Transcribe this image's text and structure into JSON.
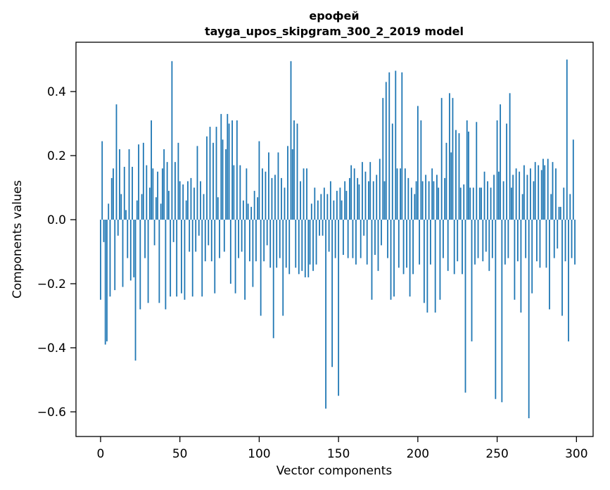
{
  "title": {
    "line1": "ерофей",
    "line2": "tayga_upos_skipgram_300_2_2019 model"
  },
  "chart_data": {
    "type": "bar",
    "title": "ерофей\ntayga_upos_skipgram_300_2_2019 model",
    "xlabel": "Vector components",
    "ylabel": "Components values",
    "xlim": [
      -15.5,
      310.5
    ],
    "ylim": [
      -0.677,
      0.554
    ],
    "xticks": [
      0,
      50,
      100,
      150,
      200,
      250,
      300
    ],
    "yticks": [
      -0.6,
      -0.4,
      -0.2,
      0.0,
      0.2,
      0.4
    ],
    "grid": false,
    "legend": "none",
    "bar_color": "#1f77b4",
    "x_start": 0,
    "values": [
      -0.25,
      0.245,
      -0.07,
      -0.39,
      -0.38,
      0.05,
      -0.24,
      0.13,
      0.16,
      -0.22,
      0.36,
      -0.05,
      0.22,
      0.08,
      -0.21,
      0.165,
      0.03,
      -0.12,
      0.22,
      -0.19,
      0.165,
      -0.18,
      -0.44,
      0.06,
      0.235,
      -0.28,
      0.08,
      0.24,
      -0.12,
      0.17,
      -0.26,
      0.1,
      0.31,
      0.16,
      -0.08,
      0.07,
      0.15,
      -0.26,
      0.05,
      0.16,
      0.22,
      -0.28,
      0.18,
      0.09,
      -0.24,
      0.495,
      -0.07,
      0.18,
      -0.24,
      0.24,
      0.12,
      -0.23,
      0.11,
      -0.25,
      0.06,
      0.12,
      -0.1,
      0.13,
      -0.24,
      0.1,
      -0.1,
      0.23,
      -0.05,
      0.12,
      -0.24,
      0.08,
      -0.13,
      0.26,
      -0.08,
      0.29,
      -0.13,
      0.24,
      -0.23,
      0.29,
      0.07,
      -0.12,
      0.33,
      0.25,
      -0.1,
      0.22,
      0.33,
      0.3,
      -0.2,
      0.31,
      0.17,
      -0.23,
      0.31,
      -0.12,
      0.17,
      -0.1,
      0.06,
      -0.25,
      0.16,
      0.05,
      -0.13,
      0.04,
      -0.21,
      0.09,
      -0.13,
      0.07,
      0.245,
      -0.3,
      0.16,
      -0.13,
      0.15,
      -0.08,
      0.21,
      -0.15,
      0.13,
      -0.37,
      0.14,
      -0.15,
      0.21,
      -0.12,
      0.13,
      -0.3,
      0.1,
      -0.15,
      0.23,
      -0.17,
      0.495,
      0.22,
      0.31,
      -0.15,
      0.3,
      -0.17,
      0.12,
      -0.16,
      0.16,
      -0.18,
      0.16,
      -0.18,
      -0.14,
      0.05,
      -0.16,
      0.1,
      -0.14,
      0.06,
      -0.05,
      0.08,
      -0.05,
      0.1,
      -0.59,
      0.08,
      -0.1,
      0.12,
      -0.46,
      0.06,
      -0.12,
      0.09,
      -0.55,
      0.1,
      0.06,
      -0.11,
      0.12,
      0.09,
      -0.12,
      0.13,
      0.17,
      -0.12,
      0.16,
      -0.14,
      0.13,
      0.11,
      -0.12,
      0.18,
      -0.05,
      0.15,
      -0.14,
      0.12,
      0.18,
      -0.25,
      0.12,
      -0.11,
      0.14,
      -0.16,
      0.19,
      -0.08,
      0.38,
      0.12,
      0.43,
      -0.12,
      0.46,
      -0.25,
      0.3,
      -0.24,
      0.465,
      0.16,
      -0.15,
      0.16,
      0.46,
      -0.17,
      0.16,
      -0.15,
      0.13,
      -0.24,
      0.1,
      -0.17,
      0.08,
      0.12,
      0.355,
      -0.14,
      0.31,
      0.12,
      -0.26,
      0.14,
      -0.29,
      0.12,
      -0.14,
      0.16,
      0.12,
      -0.29,
      0.14,
      0.1,
      -0.25,
      0.38,
      -0.12,
      0.13,
      0.24,
      -0.16,
      0.395,
      0.21,
      0.38,
      -0.17,
      0.28,
      -0.13,
      0.27,
      0.1,
      -0.17,
      0.11,
      -0.54,
      0.31,
      0.275,
      0.1,
      -0.38,
      0.1,
      -0.14,
      0.305,
      -0.12,
      0.1,
      0.1,
      -0.13,
      0.15,
      -0.1,
      0.12,
      -0.16,
      0.1,
      -0.12,
      0.14,
      -0.56,
      0.31,
      0.15,
      0.36,
      -0.57,
      0.12,
      -0.14,
      0.3,
      -0.12,
      0.395,
      0.1,
      0.14,
      -0.25,
      0.16,
      -0.13,
      0.15,
      -0.29,
      0.08,
      0.17,
      -0.12,
      0.14,
      -0.62,
      0.16,
      -0.23,
      0.12,
      0.18,
      -0.13,
      0.17,
      -0.15,
      0.155,
      0.19,
      0.17,
      -0.15,
      0.19,
      -0.28,
      0.08,
      0.18,
      -0.12,
      0.16,
      -0.09,
      0.04,
      0.04,
      -0.3,
      0.1,
      -0.13,
      0.5,
      -0.38,
      0.08,
      -0.12,
      0.25,
      -0.14
    ]
  }
}
